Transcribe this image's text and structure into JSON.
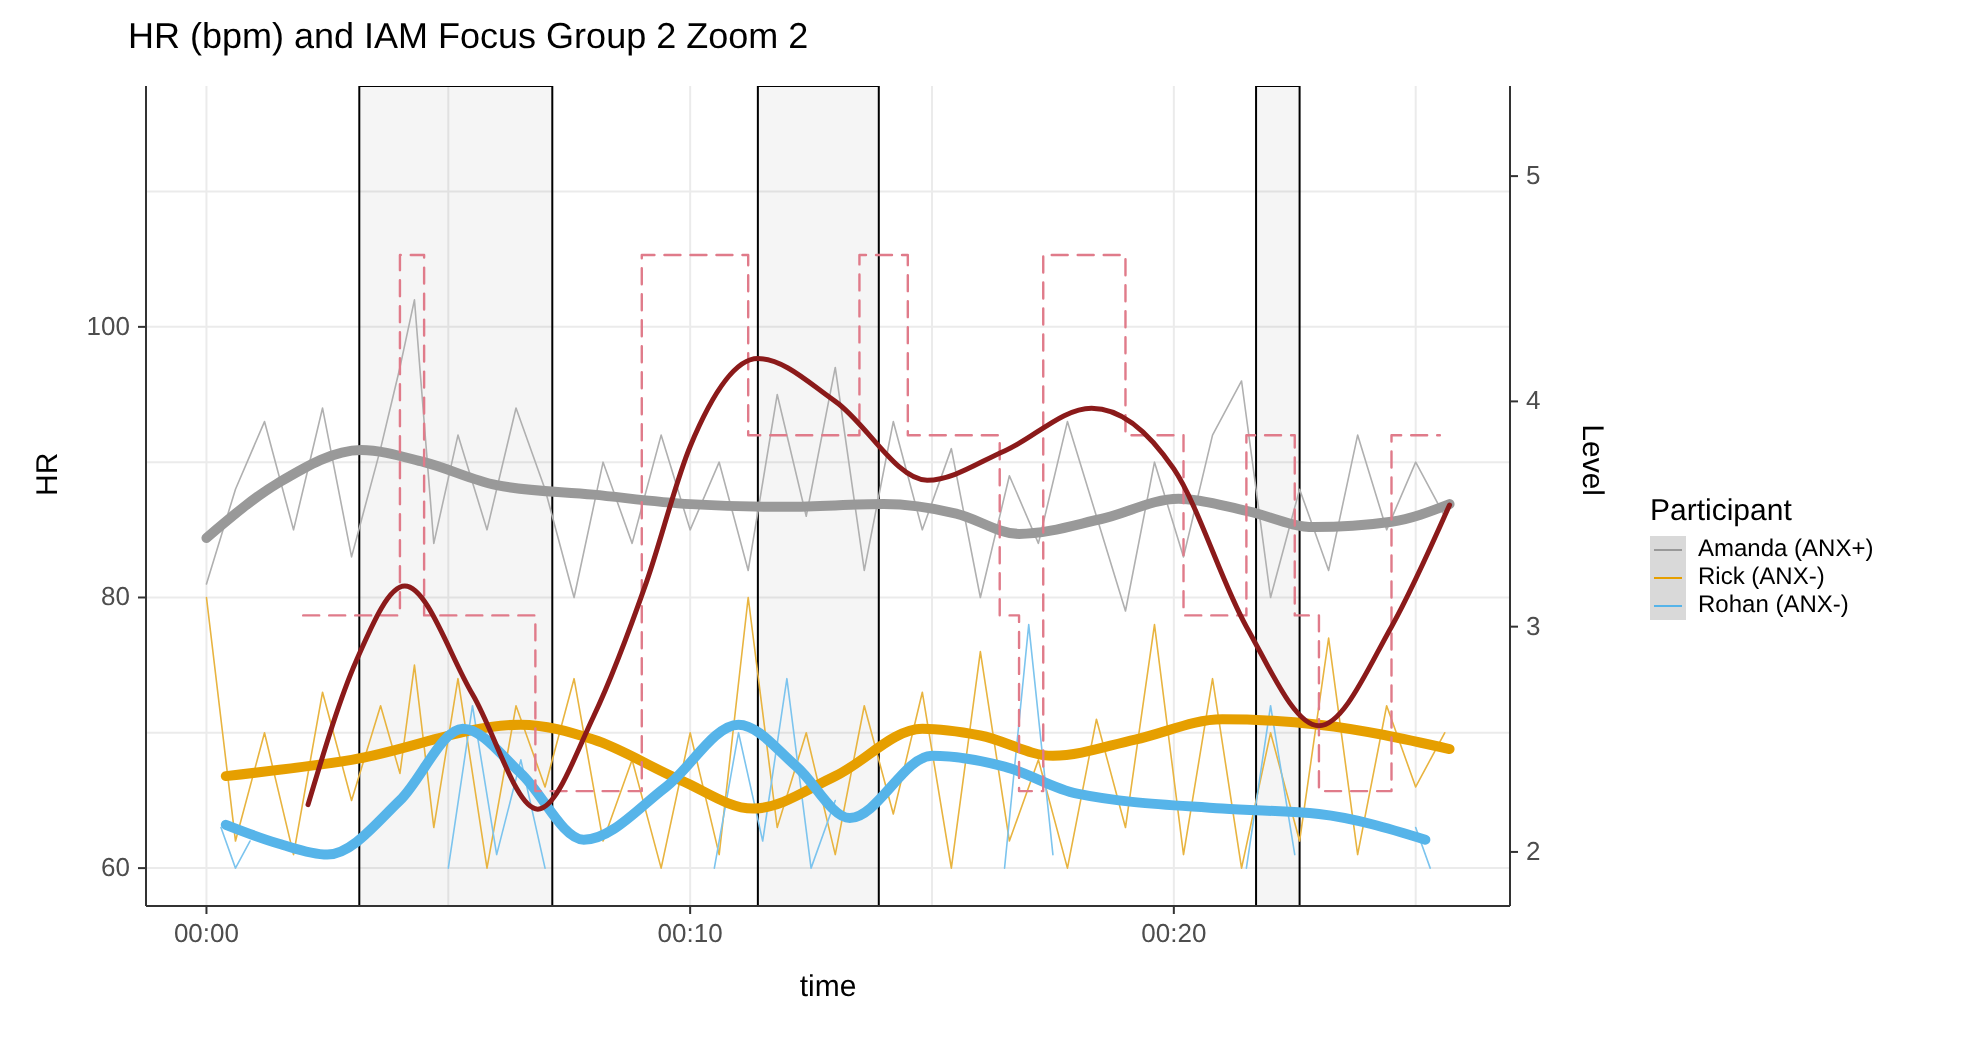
{
  "chart_data": {
    "type": "line",
    "title": "HR (bpm) and IAM Focus Group 2 Zoom 2",
    "xlabel": "time",
    "ylabel": "HR",
    "y2label": "Level",
    "legend_title": "Participant",
    "legend": "right",
    "grid": true,
    "marker": "none",
    "xlim": [
      -1.25,
      26.95
    ],
    "xticks": [
      {
        "value": 0,
        "label": "00:00"
      },
      {
        "value": 5,
        "label": null
      },
      {
        "value": 10,
        "label": "00:10"
      },
      {
        "value": 15,
        "label": null
      },
      {
        "value": 20,
        "label": "00:20"
      },
      {
        "value": 25,
        "label": null
      }
    ],
    "ylim": [
      57.2,
      117.8
    ],
    "yticks": [
      60,
      {
        "value": 70,
        "label": null
      },
      80,
      {
        "value": 90,
        "label": null
      },
      100,
      {
        "value": 110,
        "label": null
      }
    ],
    "y2lim": [
      1.76,
      5.4
    ],
    "y2ticks": [
      2,
      3,
      4,
      5
    ],
    "bands": [
      {
        "axis": "x",
        "from": 3.16,
        "to": 7.15,
        "color": "#000000"
      },
      {
        "axis": "x",
        "from": 11.4,
        "to": 13.9,
        "color": "#000000"
      },
      {
        "axis": "x",
        "from": 21.7,
        "to": 22.6,
        "color": "#000000"
      }
    ],
    "series": [
      {
        "color": "#b0b0b0",
        "x": [
          0,
          0.6,
          1.2,
          1.8,
          2.4,
          3.0,
          3.6,
          4.0,
          4.3,
          4.7,
          5.2,
          5.8,
          6.4,
          7.0,
          7.6,
          8.2,
          8.8,
          9.4,
          10.0,
          10.6,
          11.2,
          11.8,
          12.4,
          13.0,
          13.6,
          14.2,
          14.8,
          15.4,
          16.0,
          16.6,
          17.2,
          17.8,
          18.4,
          19.0,
          19.6,
          20.2,
          20.8,
          21.4,
          22.0,
          22.6,
          23.2,
          23.8,
          24.4,
          25.0,
          25.6
        ],
        "values": [
          81,
          88,
          93,
          85,
          94,
          83,
          91,
          97,
          102,
          84,
          92,
          85,
          94,
          88,
          80,
          90,
          84,
          92,
          85,
          90,
          82,
          95,
          86,
          97,
          82,
          93,
          85,
          91,
          80,
          89,
          84,
          93,
          86,
          79,
          90,
          83,
          92,
          96,
          80,
          88,
          82,
          92,
          85,
          90,
          86
        ]
      },
      {
        "color": "#e8b440",
        "x": [
          0,
          0.6,
          1.2,
          1.8,
          2.4,
          3.0,
          3.6,
          4.0,
          4.3,
          4.7,
          5.2,
          5.8,
          6.4,
          7.0,
          7.6,
          8.2,
          8.8,
          9.4,
          10.0,
          10.6,
          11.2,
          11.8,
          12.4,
          13.0,
          13.6,
          14.2,
          14.8,
          15.4,
          16.0,
          16.6,
          17.2,
          17.8,
          18.4,
          19.0,
          19.6,
          20.2,
          20.8,
          21.4,
          22.0,
          22.6,
          23.2,
          23.8,
          24.4,
          25.0,
          25.6
        ],
        "values": [
          80,
          62,
          70,
          61,
          73,
          65,
          72,
          67,
          75,
          63,
          74,
          60,
          72,
          66,
          74,
          62,
          68,
          60,
          70,
          61,
          80,
          63,
          70,
          61,
          72,
          64,
          73,
          60,
          76,
          62,
          68,
          60,
          71,
          63,
          78,
          61,
          74,
          60,
          70,
          62,
          77,
          61,
          72,
          66,
          70
        ]
      },
      {
        "color": "#7cc4ee",
        "x": [
          0.3,
          0.6,
          0.9,
          2,
          5.0,
          5.5,
          6.0,
          6.5,
          7.0,
          9,
          10.5,
          11.0,
          11.5,
          12.0,
          12.5,
          13.0,
          15,
          16.5,
          17.0,
          17.5,
          19,
          21.5,
          22.0,
          22.5,
          24,
          25.0,
          25.3
        ],
        "values": [
          63,
          60,
          62,
          null,
          60,
          72,
          61,
          68,
          60,
          null,
          60,
          70,
          62,
          74,
          60,
          65,
          null,
          60,
          78,
          61,
          null,
          60,
          72,
          61,
          null,
          63,
          60
        ]
      },
      {
        "name": "Amanda (ANX+)",
        "color": "#999999",
        "x": [
          0,
          1.5,
          3.2,
          4.5,
          6,
          8,
          10,
          12,
          14,
          15.5,
          16.8,
          18.5,
          20.1,
          21.5,
          22.9,
          24.5,
          25.7
        ],
        "values": [
          84.4,
          88.5,
          90.9,
          90,
          88.3,
          87.6,
          86.9,
          86.7,
          86.9,
          86.2,
          84.7,
          85.8,
          87.3,
          86.4,
          85.2,
          85.6,
          86.9
        ]
      },
      {
        "name": "Rick (ANX-)",
        "color": "#e69f00",
        "x": [
          0.4,
          3,
          6.5,
          8,
          9.8,
          11.3,
          13,
          14.8,
          16,
          17.5,
          19.2,
          21,
          23,
          25.7
        ],
        "values": [
          66.8,
          68.0,
          70.6,
          69.5,
          66.5,
          64.4,
          66.8,
          70.3,
          69.8,
          68.3,
          69.5,
          71.0,
          70.6,
          68.8
        ]
      },
      {
        "name": "Rohan (ANX-)",
        "color": "#56b4e9",
        "x": [
          0.4,
          1.5,
          2.5,
          4,
          5.3,
          6.5,
          7.8,
          9.5,
          11,
          12.2,
          13.3,
          15,
          16.5,
          18,
          21,
          23,
          25.2
        ],
        "values": [
          63.2,
          61.8,
          61,
          65,
          70.3,
          67,
          62.1,
          66,
          70.6,
          67.5,
          63.7,
          68.3,
          67.5,
          65.5,
          64.4,
          64,
          62.1
        ]
      },
      {
        "type": "step",
        "axis": "y2",
        "color": "#e07b8a",
        "line_style": "dashed",
        "x": [
          2.0,
          3.0,
          4.0,
          4.5,
          6.8,
          9.0,
          11.2,
          12.4,
          13.5,
          14.5,
          16.4,
          16.8,
          17.3,
          19.0,
          20.2,
          21.5,
          22.5,
          23.0,
          24.5,
          25.5
        ],
        "values": [
          3.05,
          3.05,
          4.65,
          3.05,
          2.27,
          4.65,
          3.85,
          3.85,
          4.65,
          3.85,
          3.05,
          2.27,
          4.65,
          3.85,
          3.05,
          3.85,
          3.05,
          2.27,
          3.85,
          3.85
        ]
      },
      {
        "axis": "y2",
        "color": "#8b1a1a",
        "x": [
          2.1,
          3.1,
          4.1,
          5.5,
          6.85,
          8,
          9.1,
          10,
          11.4,
          13,
          14.9,
          16.5,
          18.3,
          20,
          21.5,
          23.0,
          24.5,
          25.7
        ],
        "values": [
          2.21,
          2.85,
          3.18,
          2.7,
          2.19,
          2.6,
          3.2,
          3.8,
          4.19,
          4.0,
          3.65,
          3.78,
          3.97,
          3.7,
          3.0,
          2.56,
          3.0,
          3.54
        ]
      }
    ]
  }
}
